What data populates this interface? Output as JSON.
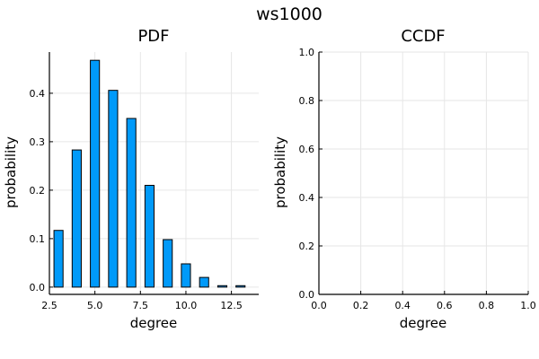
{
  "figure": {
    "title": "ws1000"
  },
  "chart_data": [
    {
      "type": "bar",
      "title": "PDF",
      "xlabel": "degree",
      "ylabel": "probability",
      "x": [
        3,
        4,
        5,
        6,
        7,
        8,
        9,
        10,
        11,
        12,
        13
      ],
      "values": [
        0.117,
        0.283,
        0.468,
        0.406,
        0.348,
        0.21,
        0.098,
        0.048,
        0.02,
        0.003,
        0.003
      ],
      "xlim": [
        2.5,
        14.0
      ],
      "ylim": [
        -0.015,
        0.485
      ],
      "xticks": [
        2.5,
        5.0,
        7.5,
        10.0,
        12.5
      ],
      "xtick_labels": [
        "2.5",
        "5.0",
        "7.5",
        "10.0",
        "12.5"
      ],
      "yticks": [
        0.0,
        0.1,
        0.2,
        0.3,
        0.4
      ],
      "ytick_labels": [
        "0.0",
        "0.1",
        "0.2",
        "0.3",
        "0.4"
      ],
      "grid": true,
      "color": "#009af9"
    },
    {
      "type": "line",
      "title": "CCDF",
      "xlabel": "degree",
      "ylabel": "probability",
      "series": [],
      "xlim": [
        0.0,
        1.0
      ],
      "ylim": [
        0.0,
        1.0
      ],
      "xticks": [
        0.0,
        0.2,
        0.4,
        0.6,
        0.8,
        1.0
      ],
      "xtick_labels": [
        "0.0",
        "0.2",
        "0.4",
        "0.6",
        "0.8",
        "1.0"
      ],
      "yticks": [
        0.0,
        0.2,
        0.4,
        0.6,
        0.8,
        1.0
      ],
      "ytick_labels": [
        "0.0",
        "0.2",
        "0.4",
        "0.6",
        "0.8",
        "1.0"
      ],
      "grid": true
    }
  ]
}
